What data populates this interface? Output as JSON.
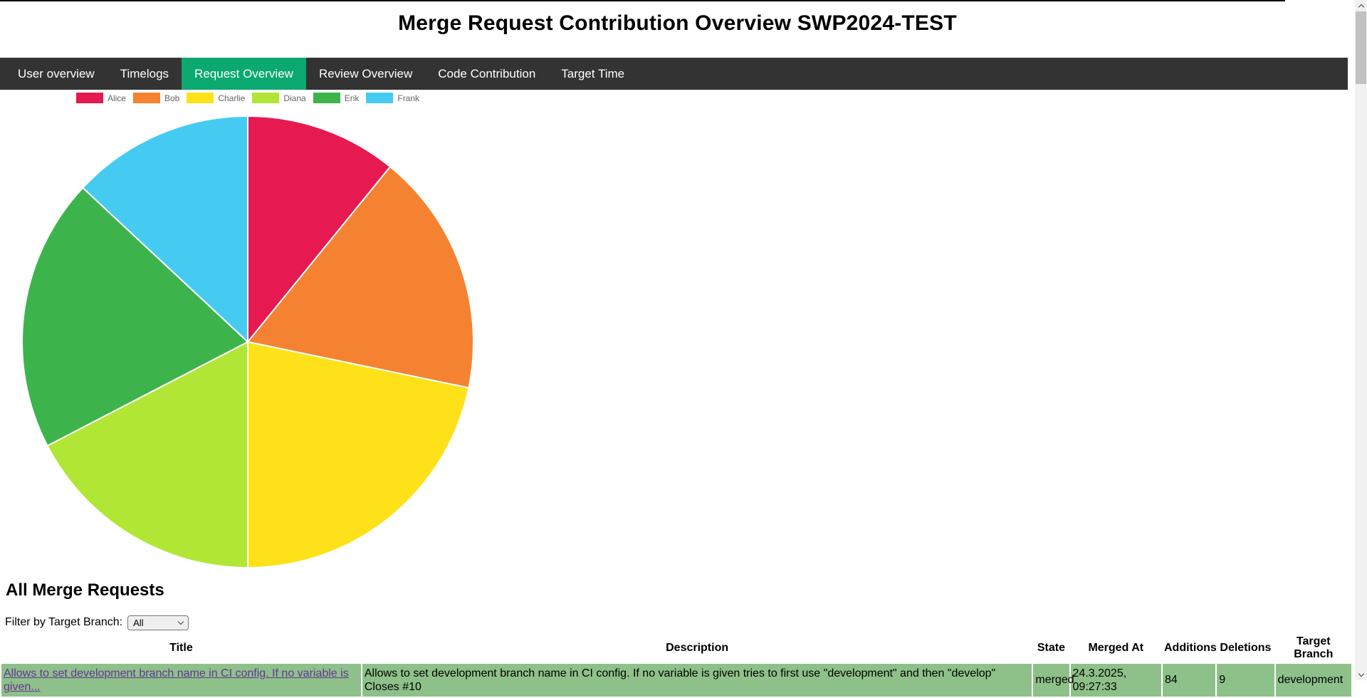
{
  "page": {
    "title": "Merge Request Contribution Overview SWP2024-TEST"
  },
  "nav": {
    "tabs": [
      {
        "label": "User overview",
        "active": false
      },
      {
        "label": "Timelogs",
        "active": false
      },
      {
        "label": "Request Overview",
        "active": true
      },
      {
        "label": "Review Overview",
        "active": false
      },
      {
        "label": "Code Contribution",
        "active": false
      },
      {
        "label": "Target Time",
        "active": false
      }
    ]
  },
  "chart_data": {
    "type": "pie",
    "labels": [
      "Alice",
      "Bob",
      "Charlie",
      "Diana",
      "Erik",
      "Frank"
    ],
    "values": [
      5,
      8,
      10,
      8,
      9,
      6
    ],
    "colors": [
      "#e61950",
      "#f58231",
      "#ffe119",
      "#b2e635",
      "#3cb44b",
      "#45cbf2"
    ],
    "legend_position": "top",
    "start_angle_deg": 0,
    "direction": "clockwise"
  },
  "merge_requests": {
    "heading": "All Merge Requests",
    "filter_label": "Filter by Target Branch:",
    "filter_value": "All",
    "table": {
      "columns": [
        "Title",
        "Description",
        "State",
        "Merged At",
        "Additions",
        "Deletions",
        "Target Branch"
      ],
      "rows": [
        {
          "title": "Allows to set development branch name in CI config. If no variable is given...",
          "description": "Allows to set development branch name in CI config. If no variable is given tries to first use \"development\" and then \"develop\"\nCloses #10",
          "state": "merged",
          "merged_at": "24.3.2025, 09:27:33",
          "additions": "84",
          "deletions": "9",
          "target_branch": "development"
        }
      ]
    }
  },
  "colors": {
    "nav_bg": "#333333",
    "active_tab": "#0ba970",
    "row_bg": "#8ec189",
    "link": "#663399"
  }
}
